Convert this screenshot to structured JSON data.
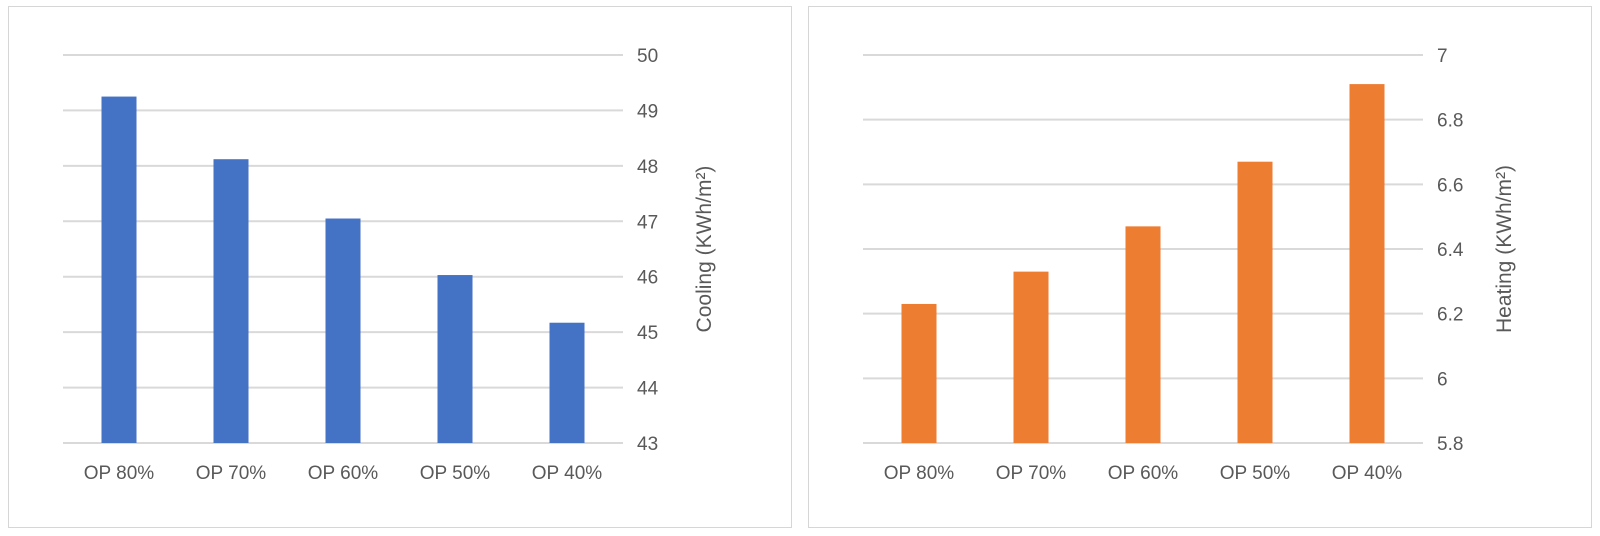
{
  "chart_data": [
    {
      "type": "bar",
      "categories": [
        "OP 80%",
        "OP 70%",
        "OP 60%",
        "OP 50%",
        "OP 40%"
      ],
      "series": [
        {
          "values": [
            49.25,
            48.12,
            47.05,
            46.03,
            45.17
          ],
          "color": "#4472c4"
        }
      ],
      "ylabel": "Cooling (KWh/m²)",
      "y_axis_position": "right",
      "ylim": [
        43,
        50
      ],
      "yticks": [
        "43",
        "44",
        "45",
        "46",
        "47",
        "48",
        "49",
        "50"
      ],
      "grid": true,
      "legend": "none"
    },
    {
      "type": "bar",
      "categories": [
        "OP 80%",
        "OP 70%",
        "OP 60%",
        "OP 50%",
        "OP 40%"
      ],
      "series": [
        {
          "values": [
            6.23,
            6.33,
            6.47,
            6.67,
            6.91
          ],
          "color": "#ed7d31"
        }
      ],
      "ylabel": "Heating (KWh/m²)",
      "y_axis_position": "right",
      "ylim": [
        5.8,
        7
      ],
      "yticks": [
        "5.8",
        "6",
        "6.2",
        "6.4",
        "6.6",
        "6.8",
        "7"
      ],
      "grid": true,
      "legend": "none"
    }
  ]
}
